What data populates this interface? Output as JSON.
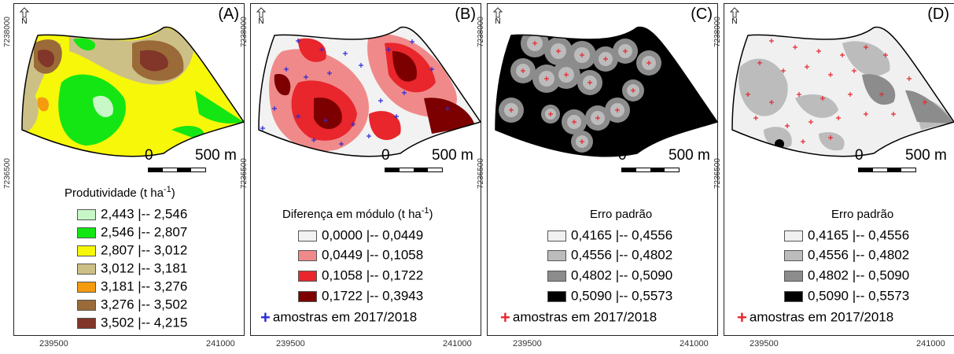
{
  "north_label": "N",
  "y_top": "7238000",
  "y_bottom": "7236500",
  "x_left": "239500",
  "x_right": "241000",
  "scale_start": "0",
  "scale_end": "500 m",
  "panels": [
    {
      "label": "(A)",
      "legend_title": "Produtividade (t ha",
      "legend_title_sup": "-1",
      "legend_title_end": ")",
      "classes": [
        {
          "range": "2,443 |-- 2,546",
          "color": "#c8f7c8"
        },
        {
          "range": "2,546 |-- 2,807",
          "color": "#14e614"
        },
        {
          "range": "2,807 |-- 3,012",
          "color": "#f7f70a"
        },
        {
          "range": "3,012 |-- 3,181",
          "color": "#cdc086"
        },
        {
          "range": "3,181 |-- 3,276",
          "color": "#f59b0f"
        },
        {
          "range": "3,276 |-- 3,502",
          "color": "#9a6a38"
        },
        {
          "range": "3,502 |-- 4,215",
          "color": "#823529"
        }
      ]
    },
    {
      "label": "(B)",
      "legend_title": "Diferença em módulo (t ha",
      "legend_title_sup": "-1",
      "legend_title_end": ")",
      "classes": [
        {
          "range": "0,0000 |-- 0,0449",
          "color": "#f2f2f2"
        },
        {
          "range": "0,0449 |-- 0,1058",
          "color": "#f08a8a"
        },
        {
          "range": "0,1058 |-- 0,1722",
          "color": "#e8262c"
        },
        {
          "range": "0,1722 |-- 0,3943",
          "color": "#7d0000"
        }
      ],
      "samples_label": "amostras em 2017/2018",
      "samples_color": "#2a2ad8"
    },
    {
      "label": "(C)",
      "legend_title": "Erro padrão",
      "classes": [
        {
          "range": "0,4165 |-- 0,4556",
          "color": "#f0f0f0"
        },
        {
          "range": "0,4556 |-- 0,4802",
          "color": "#bcbcbc"
        },
        {
          "range": "0,4802 |-- 0,5090",
          "color": "#8c8c8c"
        },
        {
          "range": "0,5090 |-- 0,5573",
          "color": "#000000"
        }
      ],
      "samples_label": "amostras em 2017/2018",
      "samples_color": "#e8262c"
    },
    {
      "label": "(D)",
      "legend_title": "Erro padrão",
      "classes": [
        {
          "range": "0,4165 |-- 0,4556",
          "color": "#f0f0f0"
        },
        {
          "range": "0,4556 |-- 0,4802",
          "color": "#bcbcbc"
        },
        {
          "range": "0,4802 |-- 0,5090",
          "color": "#8c8c8c"
        },
        {
          "range": "0,5090 |-- 0,5573",
          "color": "#000000"
        }
      ],
      "samples_label": "amostras em 2017/2018",
      "samples_color": "#e8262c"
    }
  ]
}
